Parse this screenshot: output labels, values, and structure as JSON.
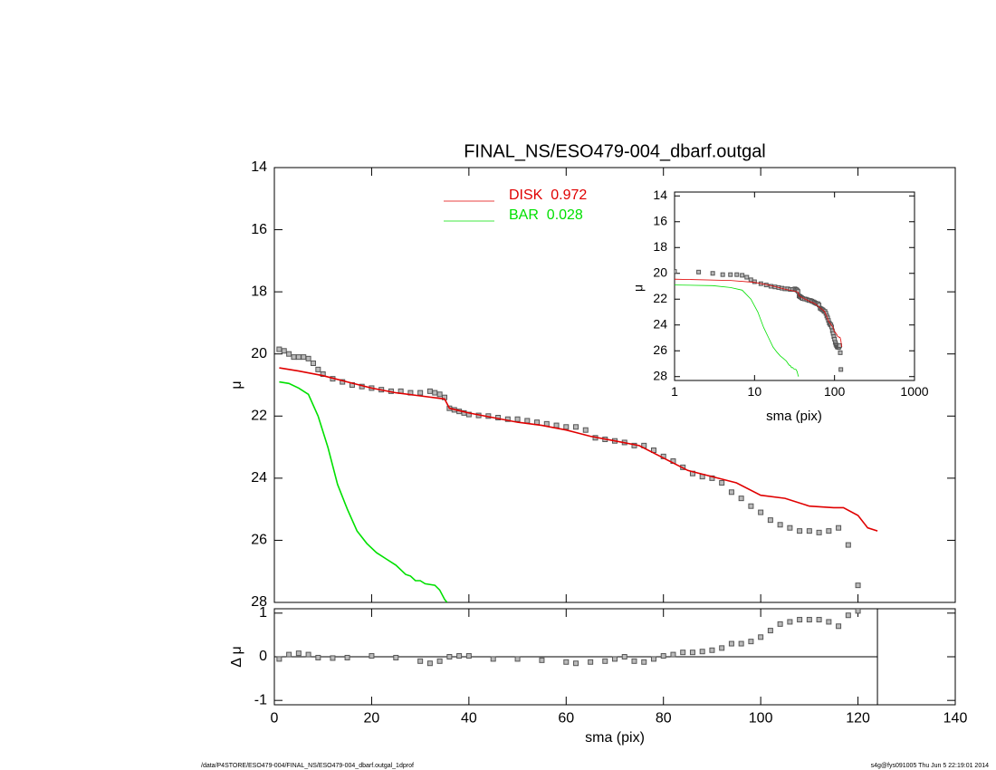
{
  "chart_data": [
    {
      "type": "scatter",
      "title": "FINAL_NS/ESO479-004_dbarf.outgal",
      "y_label": "μ",
      "xlim": [
        0,
        140
      ],
      "xticks": [
        0,
        20,
        40,
        60,
        80,
        100,
        120,
        140
      ],
      "xtick_labels": false,
      "ylim": [
        14,
        28
      ],
      "y_inverted": true,
      "yticks": [
        14,
        16,
        18,
        20,
        22,
        24,
        26,
        28
      ],
      "series": [
        {
          "marker": "square",
          "color": "#555555",
          "x": [
            1,
            2,
            3,
            4,
            5,
            6,
            7,
            8,
            9,
            10,
            12,
            14,
            16,
            18,
            20,
            22,
            24,
            26,
            28,
            30,
            32,
            33,
            34,
            35,
            36,
            37,
            38,
            39,
            40,
            42,
            44,
            46,
            48,
            50,
            52,
            54,
            56,
            58,
            60,
            62,
            64,
            66,
            68,
            70,
            72,
            74,
            76,
            78,
            80,
            82,
            84,
            86,
            88,
            90,
            92,
            94,
            96,
            98,
            100,
            102,
            104,
            106,
            108,
            110,
            112,
            114,
            116,
            118,
            120
          ],
          "values": [
            19.85,
            19.9,
            20.0,
            20.1,
            20.1,
            20.1,
            20.15,
            20.3,
            20.5,
            20.65,
            20.8,
            20.9,
            21.0,
            21.05,
            21.1,
            21.15,
            21.2,
            21.2,
            21.25,
            21.25,
            21.2,
            21.25,
            21.3,
            21.4,
            21.75,
            21.8,
            21.85,
            21.9,
            21.95,
            21.98,
            22.0,
            22.05,
            22.1,
            22.1,
            22.15,
            22.2,
            22.25,
            22.3,
            22.35,
            22.35,
            22.45,
            22.7,
            22.75,
            22.8,
            22.85,
            22.95,
            22.95,
            23.1,
            23.3,
            23.45,
            23.65,
            23.85,
            23.95,
            24.0,
            24.15,
            24.45,
            24.65,
            24.9,
            25.1,
            25.35,
            25.5,
            25.6,
            25.7,
            25.7,
            25.75,
            25.7,
            25.6,
            26.15,
            27.45
          ]
        },
        {
          "name": "DISK  0.972",
          "marker": "line",
          "color": "#e00000",
          "x": [
            1,
            5,
            10,
            15,
            20,
            25,
            30,
            35,
            36,
            40,
            45,
            50,
            55,
            60,
            65,
            70,
            75,
            80,
            85,
            90,
            95,
            100,
            105,
            110,
            115,
            117,
            120,
            122,
            124
          ],
          "values": [
            20.45,
            20.55,
            20.7,
            20.9,
            21.1,
            21.25,
            21.35,
            21.45,
            21.75,
            21.9,
            22.05,
            22.2,
            22.3,
            22.45,
            22.65,
            22.8,
            22.95,
            23.35,
            23.75,
            23.95,
            24.15,
            24.55,
            24.65,
            24.9,
            24.95,
            24.95,
            25.2,
            25.6,
            25.7
          ]
        },
        {
          "name": "BAR  0.028",
          "marker": "line",
          "color": "#00e000",
          "x": [
            1,
            3,
            5,
            7,
            9,
            11,
            13,
            15,
            17,
            19,
            21,
            23,
            25,
            27,
            28,
            29,
            30,
            31,
            33,
            34,
            35,
            35.5
          ],
          "values": [
            20.9,
            20.95,
            21.1,
            21.3,
            22.0,
            23.0,
            24.2,
            25.0,
            25.7,
            26.1,
            26.4,
            26.6,
            26.8,
            27.1,
            27.15,
            27.3,
            27.3,
            27.4,
            27.45,
            27.6,
            27.9,
            28.0
          ]
        }
      ]
    },
    {
      "type": "scatter",
      "x_label": "sma (pix)",
      "y_label": "Δ μ",
      "xlim": [
        0,
        140
      ],
      "xticks": [
        0,
        20,
        40,
        60,
        80,
        100,
        120,
        140
      ],
      "xtick_labels": true,
      "ylim": [
        -1.1,
        1.1
      ],
      "yticks": [
        -1,
        0,
        1
      ],
      "vline": 124,
      "series": [
        {
          "marker": "square",
          "color": "#555555",
          "x": [
            1,
            3,
            5,
            7,
            9,
            12,
            15,
            20,
            25,
            30,
            32,
            34,
            36,
            38,
            40,
            45,
            50,
            55,
            60,
            62,
            65,
            68,
            70,
            72,
            74,
            76,
            78,
            80,
            82,
            84,
            86,
            88,
            90,
            92,
            94,
            96,
            98,
            100,
            102,
            104,
            106,
            108,
            110,
            112,
            114,
            116,
            118,
            120
          ],
          "values": [
            -0.05,
            0.05,
            0.08,
            0.05,
            -0.02,
            -0.03,
            -0.02,
            0.02,
            -0.02,
            -0.1,
            -0.15,
            -0.1,
            0,
            0.02,
            0.02,
            -0.05,
            -0.05,
            -0.08,
            -0.12,
            -0.15,
            -0.12,
            -0.1,
            -0.05,
            0,
            -0.1,
            -0.12,
            -0.05,
            0.02,
            0.05,
            0.1,
            0.1,
            0.12,
            0.15,
            0.2,
            0.3,
            0.3,
            0.35,
            0.45,
            0.6,
            0.75,
            0.8,
            0.85,
            0.85,
            0.85,
            0.8,
            0.7,
            0.95,
            1.05
          ]
        }
      ]
    },
    {
      "type": "scatter",
      "x_label": "sma (pix)",
      "y_label": "μ",
      "log_x": true,
      "xlim": [
        1,
        1000
      ],
      "xticks": [
        1,
        10,
        100,
        1000
      ],
      "xtick_labels": true,
      "ylim": [
        13.7,
        28.3
      ],
      "y_inverted": true,
      "yticks": [
        14,
        16,
        18,
        20,
        22,
        24,
        26,
        28
      ]
    }
  ],
  "footer": {
    "left": "/data/P4STORE/ESO479-004/FINAL_NS/ESO479-004_dbarf.outgal_1dprof",
    "right": "s4g@fys091005  Thu Jun  5 22:19:01 2014"
  }
}
